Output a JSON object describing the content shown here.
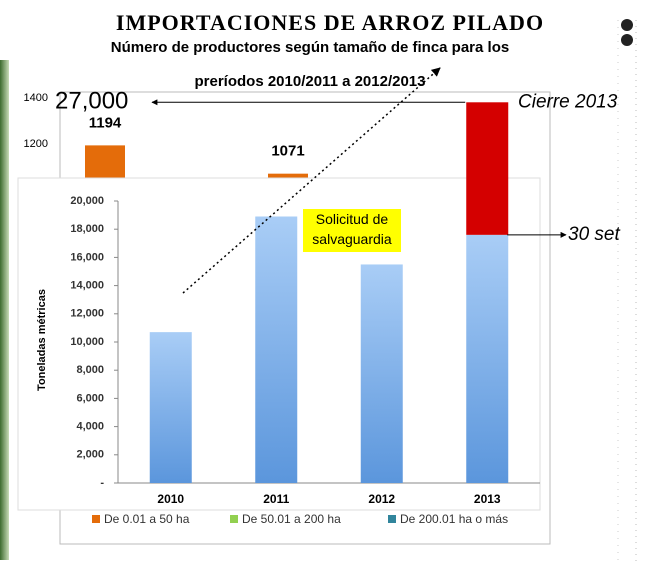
{
  "chart_data": [
    {
      "type": "bar",
      "title": "IMPORTACIONES DE ARROZ PILADO",
      "y_label": "Toneladas métricas",
      "categories": [
        "2010",
        "2011",
        "2012",
        "2013"
      ],
      "values": [
        10700,
        18900,
        15500,
        17600
      ],
      "color": "#7fb0e8",
      "extension": {
        "name": "Cierre 2013",
        "color": "#d40000",
        "values": [
          null,
          null,
          null,
          9400
        ]
      },
      "ylim": [
        0,
        20000
      ],
      "yticks": [
        {
          "value": 0,
          "label": "-"
        },
        {
          "value": 2000,
          "label": "2,000"
        },
        {
          "value": 4000,
          "label": "4,000"
        },
        {
          "value": 6000,
          "label": "6,000"
        },
        {
          "value": 8000,
          "label": "8,000"
        },
        {
          "value": 10000,
          "label": "10,000"
        },
        {
          "value": 12000,
          "label": "12,000"
        },
        {
          "value": 14000,
          "label": "14,000"
        },
        {
          "value": 16000,
          "label": "16,000"
        },
        {
          "value": 18000,
          "label": "18,000"
        },
        {
          "value": 20000,
          "label": "20,000"
        }
      ],
      "annotations": [
        "27,000",
        "30 set",
        "Solicitud de salvaguardia"
      ]
    },
    {
      "type": "bar",
      "title": "Número de productores según tamaño de finca para los preríodos 2010/2011 a 2012/2013",
      "categories": [
        null,
        null
      ],
      "ylim": [
        1000,
        1400
      ],
      "yticks": [
        1200,
        1400
      ],
      "series": [
        {
          "name": "De 0.01 a 50 ha",
          "color": "#e46c0a",
          "values": [
            1194,
            1071
          ]
        },
        {
          "name": "De 50.01 a 200 ha",
          "color": "#92d050",
          "values": [
            null,
            null
          ]
        },
        {
          "name": "De 200.01 ha o más",
          "color": "#31859c",
          "values": [
            null,
            null
          ]
        }
      ]
    }
  ]
}
